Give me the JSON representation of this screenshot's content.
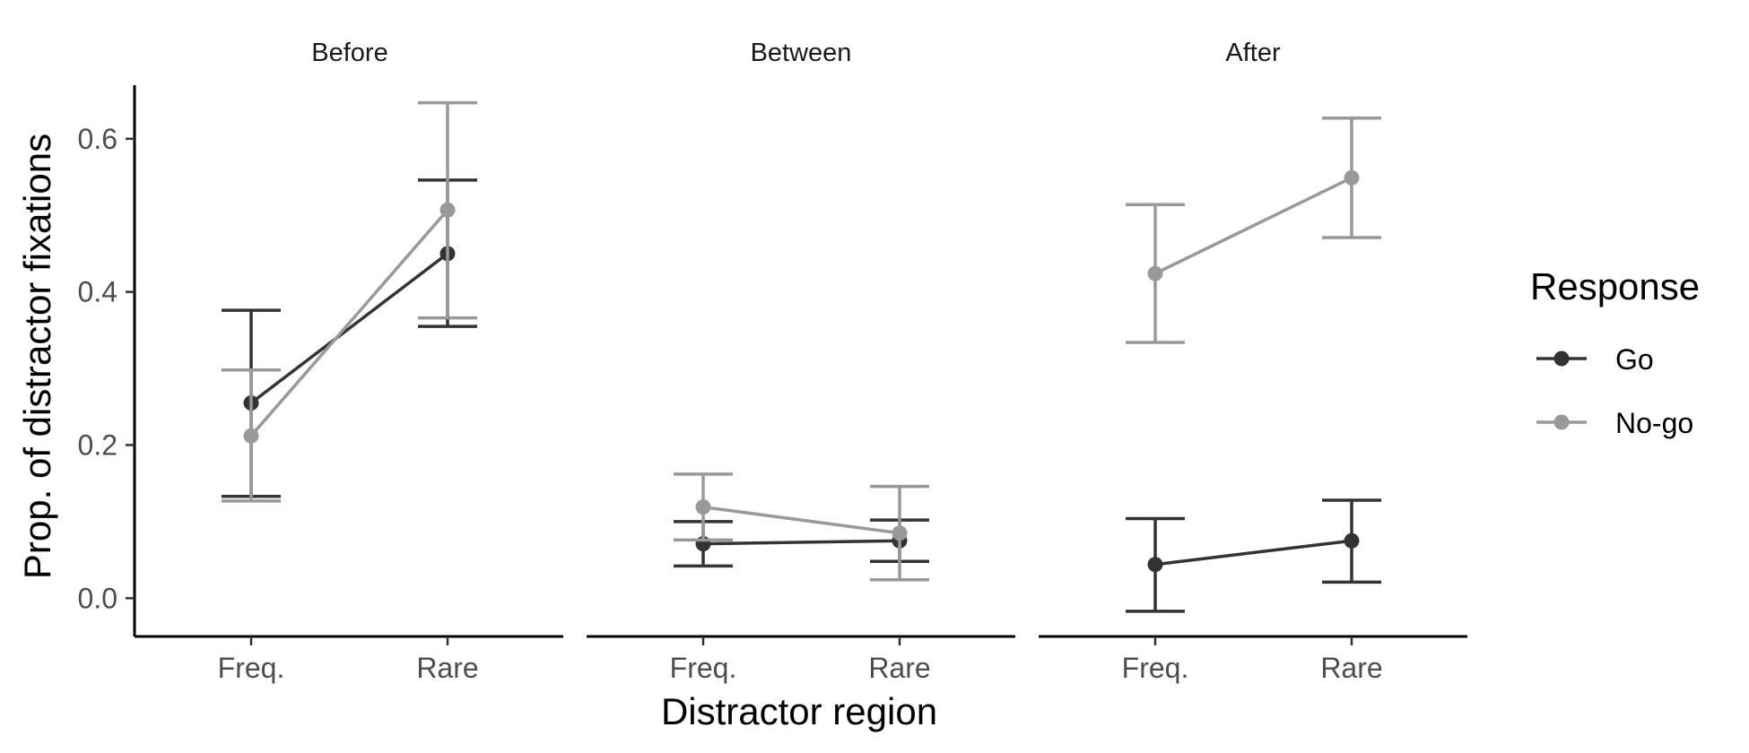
{
  "chart_data": {
    "type": "line",
    "facets": [
      "Before",
      "Between",
      "After"
    ],
    "categories": [
      "Freq.",
      "Rare"
    ],
    "xlabel": "Distractor region",
    "ylabel": "Prop. of distractor fixations",
    "ylim": [
      -0.05,
      0.67
    ],
    "yticks": [
      0.0,
      0.2,
      0.4,
      0.6
    ],
    "ytick_labels": [
      "0.0",
      "0.2",
      "0.4",
      "0.6"
    ],
    "legend": {
      "title": "Response",
      "placement": "right"
    },
    "grid": false,
    "series": [
      {
        "name": "Go",
        "color": "#333333",
        "data": {
          "Before": {
            "values": [
              0.255,
              0.45
            ],
            "lower": [
              0.133,
              0.355
            ],
            "upper": [
              0.376,
              0.546
            ]
          },
          "Between": {
            "values": [
              0.071,
              0.075
            ],
            "lower": [
              0.042,
              0.048
            ],
            "upper": [
              0.1,
              0.102
            ]
          },
          "After": {
            "values": [
              0.044,
              0.075
            ],
            "lower": [
              -0.017,
              0.021
            ],
            "upper": [
              0.104,
              0.128
            ]
          }
        }
      },
      {
        "name": "No-go",
        "color": "#999999",
        "data": {
          "Before": {
            "values": [
              0.212,
              0.507
            ],
            "lower": [
              0.127,
              0.366
            ],
            "upper": [
              0.298,
              0.647
            ]
          },
          "Between": {
            "values": [
              0.119,
              0.085
            ],
            "lower": [
              0.076,
              0.024
            ],
            "upper": [
              0.162,
              0.146
            ]
          },
          "After": {
            "values": [
              0.424,
              0.549
            ],
            "lower": [
              0.334,
              0.471
            ],
            "upper": [
              0.514,
              0.627
            ]
          }
        }
      }
    ]
  }
}
